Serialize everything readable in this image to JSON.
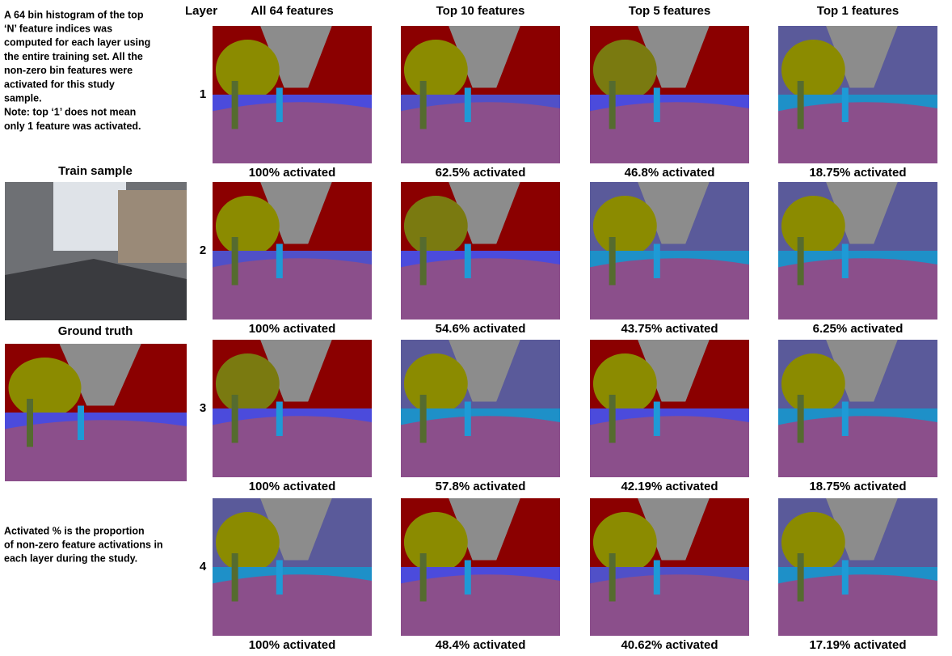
{
  "notes": {
    "top": [
      "A 64 bin histogram of the top",
      "‘N’ feature indices was",
      "computed  for each layer using",
      "the entire training set. All the",
      "non-zero bin features  were",
      "activated for this study",
      "sample.",
      "Note: top ‘1’ does not mean",
      "only 1 feature was activated."
    ],
    "bottom": [
      "Activated % is the proportion",
      "of non-zero feature activations in",
      "each layer during the study."
    ]
  },
  "train_label": "Train sample",
  "truth_label": "Ground truth",
  "grid": {
    "corner": "Layer",
    "columns": [
      "All 64 features",
      "Top 10 features",
      "Top 5 features",
      "Top 1 features"
    ],
    "rows": [
      {
        "label": "1",
        "captions": [
          "100% activated",
          "62.5% activated",
          "46.8% activated",
          "18.75% activated"
        ]
      },
      {
        "label": "2",
        "captions": [
          "100% activated",
          "54.6% activated",
          "43.75% activated",
          "6.25% activated"
        ]
      },
      {
        "label": "3",
        "captions": [
          "100% activated",
          "57.8% activated",
          "42.19% activated",
          "18.75% activated"
        ]
      },
      {
        "label": "4",
        "captions": [
          "100% activated",
          "48.4% activated",
          "40.62% activated",
          "17.19% activated"
        ]
      }
    ]
  }
}
